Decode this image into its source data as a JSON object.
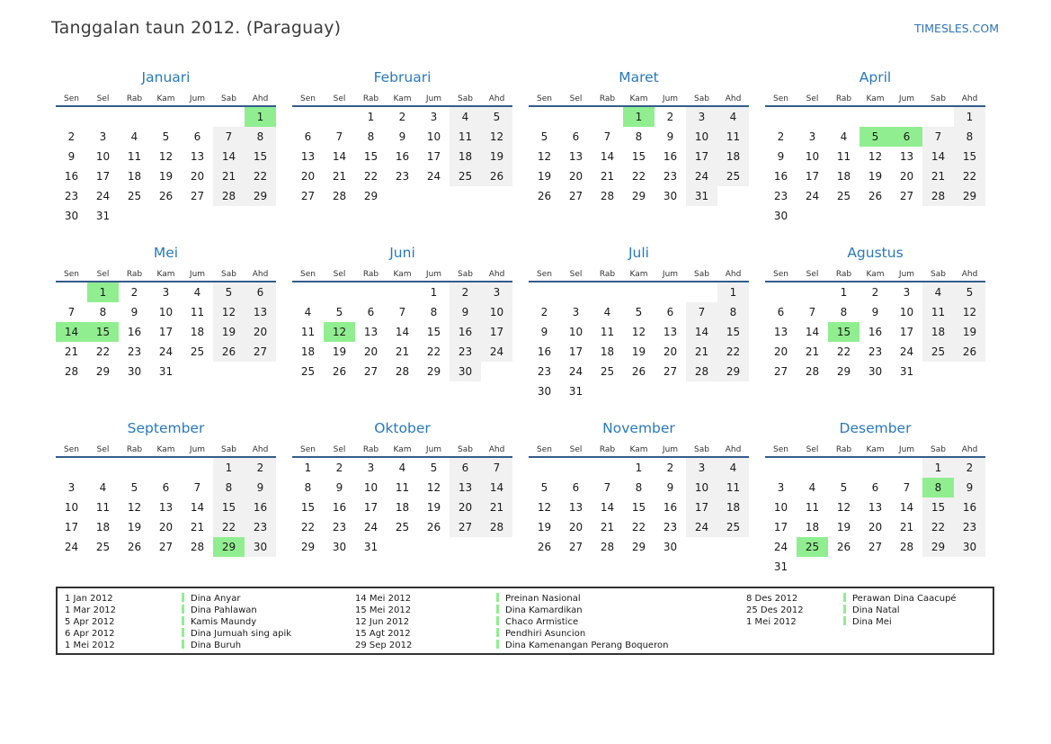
{
  "header": {
    "title": "Tanggalan taun 2012. (Paraguay)",
    "brand": "TIMESLES.COM"
  },
  "colors": {
    "holiday_green": "#90ee90",
    "weekend_gray": "#f1f1f1",
    "month_title_blue": "#2879bd",
    "header_rule_blue": "#335c8a",
    "brand_blue": "#2e74b5"
  },
  "calendar": {
    "year": "2012",
    "weekday_labels": [
      "Sen",
      "Sel",
      "Rab",
      "Kam",
      "Jum",
      "Sab",
      "Ahd"
    ],
    "months": [
      {
        "name": "Januari",
        "holidays": [
          1
        ],
        "weeks": [
          [
            "",
            "",
            "",
            "",
            "",
            "",
            1
          ],
          [
            2,
            3,
            4,
            5,
            6,
            7,
            8
          ],
          [
            9,
            10,
            11,
            12,
            13,
            14,
            15
          ],
          [
            16,
            17,
            18,
            19,
            20,
            21,
            22
          ],
          [
            23,
            24,
            25,
            26,
            27,
            28,
            29
          ],
          [
            30,
            31,
            "",
            "",
            "",
            "",
            ""
          ]
        ]
      },
      {
        "name": "Februari",
        "holidays": [],
        "weeks": [
          [
            "",
            "",
            1,
            2,
            3,
            4,
            5
          ],
          [
            6,
            7,
            8,
            9,
            10,
            11,
            12
          ],
          [
            13,
            14,
            15,
            16,
            17,
            18,
            19
          ],
          [
            20,
            21,
            22,
            23,
            24,
            25,
            26
          ],
          [
            27,
            28,
            29,
            "",
            "",
            "",
            ""
          ]
        ]
      },
      {
        "name": "Maret",
        "holidays": [
          1
        ],
        "weeks": [
          [
            "",
            "",
            "",
            1,
            2,
            3,
            4
          ],
          [
            5,
            6,
            7,
            8,
            9,
            10,
            11
          ],
          [
            12,
            13,
            14,
            15,
            16,
            17,
            18
          ],
          [
            19,
            20,
            21,
            22,
            23,
            24,
            25
          ],
          [
            26,
            27,
            28,
            29,
            30,
            31,
            ""
          ]
        ]
      },
      {
        "name": "April",
        "holidays": [
          5,
          6
        ],
        "weeks": [
          [
            "",
            "",
            "",
            "",
            "",
            "",
            1
          ],
          [
            2,
            3,
            4,
            5,
            6,
            7,
            8
          ],
          [
            9,
            10,
            11,
            12,
            13,
            14,
            15
          ],
          [
            16,
            17,
            18,
            19,
            20,
            21,
            22
          ],
          [
            23,
            24,
            25,
            26,
            27,
            28,
            29
          ],
          [
            30,
            "",
            "",
            "",
            "",
            "",
            ""
          ]
        ]
      },
      {
        "name": "Mei",
        "holidays": [
          1,
          14,
          15
        ],
        "weeks": [
          [
            "",
            1,
            2,
            3,
            4,
            5,
            6
          ],
          [
            7,
            8,
            9,
            10,
            11,
            12,
            13
          ],
          [
            14,
            15,
            16,
            17,
            18,
            19,
            20
          ],
          [
            21,
            22,
            23,
            24,
            25,
            26,
            27
          ],
          [
            28,
            29,
            30,
            31,
            "",
            "",
            ""
          ]
        ]
      },
      {
        "name": "Juni",
        "holidays": [
          12
        ],
        "weeks": [
          [
            "",
            "",
            "",
            "",
            1,
            2,
            3
          ],
          [
            4,
            5,
            6,
            7,
            8,
            9,
            10
          ],
          [
            11,
            12,
            13,
            14,
            15,
            16,
            17
          ],
          [
            18,
            19,
            20,
            21,
            22,
            23,
            24
          ],
          [
            25,
            26,
            27,
            28,
            29,
            30,
            ""
          ]
        ]
      },
      {
        "name": "Juli",
        "holidays": [],
        "weeks": [
          [
            "",
            "",
            "",
            "",
            "",
            "",
            1
          ],
          [
            2,
            3,
            4,
            5,
            6,
            7,
            8
          ],
          [
            9,
            10,
            11,
            12,
            13,
            14,
            15
          ],
          [
            16,
            17,
            18,
            19,
            20,
            21,
            22
          ],
          [
            23,
            24,
            25,
            26,
            27,
            28,
            29
          ],
          [
            30,
            31,
            "",
            "",
            "",
            "",
            ""
          ]
        ]
      },
      {
        "name": "Agustus",
        "holidays": [
          15
        ],
        "weeks": [
          [
            "",
            "",
            1,
            2,
            3,
            4,
            5
          ],
          [
            6,
            7,
            8,
            9,
            10,
            11,
            12
          ],
          [
            13,
            14,
            15,
            16,
            17,
            18,
            19
          ],
          [
            20,
            21,
            22,
            23,
            24,
            25,
            26
          ],
          [
            27,
            28,
            29,
            30,
            31,
            "",
            ""
          ]
        ]
      },
      {
        "name": "September",
        "holidays": [
          29
        ],
        "weeks": [
          [
            "",
            "",
            "",
            "",
            "",
            1,
            2
          ],
          [
            3,
            4,
            5,
            6,
            7,
            8,
            9
          ],
          [
            10,
            11,
            12,
            13,
            14,
            15,
            16
          ],
          [
            17,
            18,
            19,
            20,
            21,
            22,
            23
          ],
          [
            24,
            25,
            26,
            27,
            28,
            29,
            30
          ]
        ]
      },
      {
        "name": "Oktober",
        "holidays": [],
        "weeks": [
          [
            1,
            2,
            3,
            4,
            5,
            6,
            7
          ],
          [
            8,
            9,
            10,
            11,
            12,
            13,
            14
          ],
          [
            15,
            16,
            17,
            18,
            19,
            20,
            21
          ],
          [
            22,
            23,
            24,
            25,
            26,
            27,
            28
          ],
          [
            29,
            30,
            31,
            "",
            "",
            "",
            ""
          ]
        ]
      },
      {
        "name": "November",
        "holidays": [],
        "weeks": [
          [
            "",
            "",
            "",
            1,
            2,
            3,
            4
          ],
          [
            5,
            6,
            7,
            8,
            9,
            10,
            11
          ],
          [
            12,
            13,
            14,
            15,
            16,
            17,
            18
          ],
          [
            19,
            20,
            21,
            22,
            23,
            24,
            25
          ],
          [
            26,
            27,
            28,
            29,
            30,
            "",
            ""
          ]
        ]
      },
      {
        "name": "Desember",
        "holidays": [
          8,
          25
        ],
        "weeks": [
          [
            "",
            "",
            "",
            "",
            "",
            1,
            2
          ],
          [
            3,
            4,
            5,
            6,
            7,
            8,
            9
          ],
          [
            10,
            11,
            12,
            13,
            14,
            15,
            16
          ],
          [
            17,
            18,
            19,
            20,
            21,
            22,
            23
          ],
          [
            24,
            25,
            26,
            27,
            28,
            29,
            30
          ],
          [
            31,
            "",
            "",
            "",
            "",
            "",
            ""
          ]
        ]
      }
    ]
  },
  "legend": {
    "groups": [
      [
        {
          "date": "1 Jan 2012",
          "name": "Dina Anyar"
        },
        {
          "date": "1 Mar 2012",
          "name": "Dina Pahlawan"
        },
        {
          "date": "5 Apr 2012",
          "name": "Kamis Maundy"
        },
        {
          "date": "6 Apr 2012",
          "name": "Dina Jumuah sing apik"
        },
        {
          "date": "1 Mei 2012",
          "name": "Dina Buruh"
        }
      ],
      [
        {
          "date": "14 Mei 2012",
          "name": "Preinan Nasional"
        },
        {
          "date": "15 Mei 2012",
          "name": "Dina Kamardikan"
        },
        {
          "date": "12 Jun 2012",
          "name": "Chaco Armistice"
        },
        {
          "date": "15 Agt 2012",
          "name": "Pendhiri Asuncion"
        },
        {
          "date": "29 Sep 2012",
          "name": "Dina Kamenangan Perang Boqueron"
        }
      ],
      [
        {
          "date": "8 Des 2012",
          "name": "Perawan Dina Caacupé"
        },
        {
          "date": "25 Des 2012",
          "name": "Dina Natal"
        },
        {
          "date": "1 Mei 2012",
          "name": "Dina Mei"
        }
      ]
    ]
  }
}
